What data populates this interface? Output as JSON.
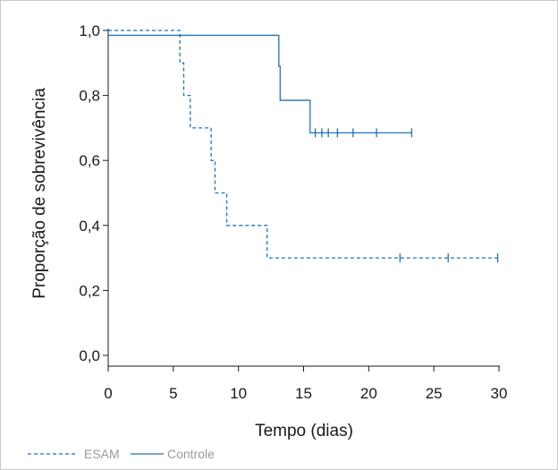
{
  "chart_data": {
    "type": "line",
    "step": true,
    "xlabel": "Tempo (dias)",
    "ylabel": "Proporção de sobrevivência",
    "xlim": [
      0,
      30
    ],
    "ylim": [
      0,
      1
    ],
    "x_ticks": [
      0,
      5,
      10,
      15,
      20,
      25,
      30
    ],
    "y_ticks": [
      0,
      0.2,
      0.4,
      0.6,
      0.8,
      1.0
    ],
    "x_tick_labels": [
      "0",
      "5",
      "10",
      "15",
      "20",
      "25",
      "30"
    ],
    "y_tick_labels": [
      "0,0",
      "0,2",
      "0,4",
      "0,6",
      "0,8",
      "1,0"
    ],
    "grid": false,
    "legend_position": "bottom-left",
    "series": [
      {
        "name": "ESAM",
        "color": "#1f73b7",
        "dash": "dashed",
        "x": [
          0,
          5.5,
          5.8,
          6.3,
          7.9,
          8.2,
          9.1,
          12.2,
          30
        ],
        "y": [
          1.0,
          0.9,
          0.8,
          0.7,
          0.6,
          0.5,
          0.4,
          0.3,
          0.3
        ],
        "censored": [
          22.4,
          26.1,
          29.9
        ],
        "censored_y": [
          0.3,
          0.3,
          0.3
        ]
      },
      {
        "name": "Controle",
        "color": "#1f73b7",
        "dash": "solid",
        "x": [
          0,
          13.1,
          13.2,
          15.5,
          23.3
        ],
        "y": [
          0.985,
          0.89,
          0.785,
          0.685,
          0.685
        ],
        "censored": [
          15.9,
          16.4,
          16.9,
          17.6,
          18.8,
          20.6,
          23.3
        ],
        "censored_y": [
          0.685,
          0.685,
          0.685,
          0.685,
          0.685,
          0.685,
          0.685
        ]
      }
    ]
  }
}
